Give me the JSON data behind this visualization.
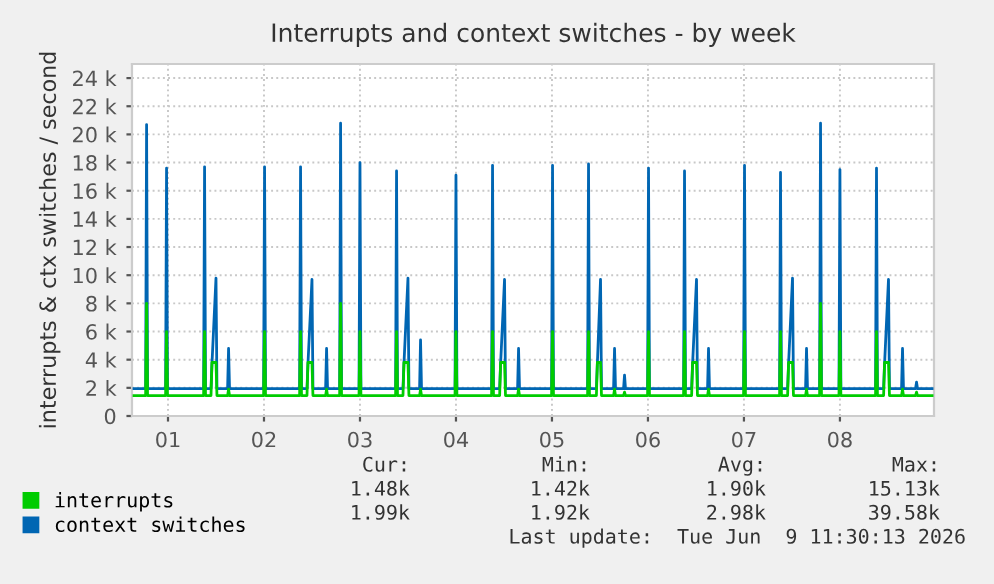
{
  "chart_data": {
    "type": "line",
    "title": "Interrupts and context switches - by week",
    "ylabel": "interrupts & ctx switches / second",
    "x": [
      0.646,
      0.767,
      0.777,
      0.787,
      0.975,
      0.985,
      0.995,
      1.371,
      1.381,
      1.391,
      1.448,
      1.458,
      1.5,
      1.51,
      1.621,
      1.631,
      1.641,
      1.996,
      2.006,
      2.016,
      2.371,
      2.381,
      2.391,
      2.448,
      2.458,
      2.5,
      2.51,
      2.642,
      2.652,
      2.662,
      2.788,
      2.798,
      2.808,
      2.99,
      3.0,
      3.01,
      3.371,
      3.381,
      3.391,
      3.448,
      3.458,
      3.5,
      3.51,
      3.621,
      3.631,
      3.641,
      3.99,
      4.0,
      4.01,
      4.371,
      4.381,
      4.391,
      4.455,
      4.465,
      4.506,
      4.516,
      4.642,
      4.652,
      4.662,
      4.996,
      5.006,
      5.016,
      5.371,
      5.381,
      5.391,
      5.463,
      5.473,
      5.506,
      5.516,
      5.642,
      5.652,
      5.662,
      5.746,
      5.756,
      5.766,
      5.996,
      6.006,
      6.016,
      6.371,
      6.381,
      6.391,
      6.455,
      6.465,
      6.506,
      6.516,
      6.621,
      6.631,
      6.641,
      6.996,
      7.006,
      7.016,
      7.371,
      7.381,
      7.391,
      7.455,
      7.465,
      7.506,
      7.516,
      7.642,
      7.652,
      7.662,
      7.788,
      7.798,
      7.808,
      7.99,
      8.0,
      8.01,
      8.371,
      8.381,
      8.391,
      8.455,
      8.465,
      8.506,
      8.516,
      8.642,
      8.652,
      8.662,
      8.788,
      8.798,
      8.808,
      8.96
    ],
    "series": [
      {
        "name": "interrupts",
        "color": "#00cc00",
        "values": [
          1450,
          1450,
          8000,
          1450,
          1450,
          6000,
          1450,
          1450,
          6000,
          1450,
          1450,
          3800,
          3800,
          1450,
          1450,
          1900,
          1450,
          1450,
          6000,
          1450,
          1450,
          6000,
          1450,
          1450,
          3800,
          3800,
          1450,
          1450,
          1900,
          1450,
          1450,
          8000,
          1450,
          1450,
          6000,
          1450,
          1450,
          6000,
          1450,
          1450,
          3800,
          3800,
          1450,
          1450,
          1900,
          1450,
          1450,
          6000,
          1450,
          1450,
          6000,
          1450,
          1450,
          3800,
          3800,
          1450,
          1450,
          1900,
          1450,
          1450,
          6000,
          1450,
          1450,
          6000,
          1450,
          1450,
          3800,
          3800,
          1450,
          1450,
          1900,
          1450,
          1450,
          1700,
          1450,
          1450,
          6000,
          1450,
          1450,
          6000,
          1450,
          1450,
          3800,
          3800,
          1450,
          1450,
          1900,
          1450,
          1450,
          6000,
          1450,
          1450,
          6000,
          1450,
          1450,
          3800,
          3800,
          1450,
          1450,
          1900,
          1450,
          1450,
          8000,
          1450,
          1450,
          6000,
          1450,
          1450,
          6000,
          1450,
          1450,
          3800,
          3800,
          1450,
          1450,
          1900,
          1450,
          1450,
          1700,
          1450,
          1450
        ]
      },
      {
        "name": "context switches",
        "color": "#0066b3",
        "values": [
          1950,
          1950,
          20700,
          1950,
          1950,
          17600,
          1950,
          1950,
          17700,
          1950,
          1950,
          3700,
          9800,
          1950,
          1950,
          4800,
          1950,
          1950,
          17700,
          1950,
          1950,
          17700,
          1950,
          1950,
          3700,
          9700,
          1950,
          1950,
          4800,
          1950,
          1950,
          20800,
          1950,
          1950,
          18000,
          1950,
          1950,
          17400,
          1950,
          1950,
          3700,
          9800,
          1950,
          1950,
          5400,
          1950,
          1950,
          17100,
          1950,
          1950,
          17800,
          1950,
          1950,
          3700,
          9700,
          1950,
          1950,
          4800,
          1950,
          1950,
          17800,
          1950,
          1950,
          17900,
          1950,
          1950,
          3700,
          9700,
          1950,
          1950,
          4800,
          1950,
          1950,
          2900,
          1950,
          1950,
          17600,
          1950,
          1950,
          17400,
          1950,
          1950,
          3700,
          9700,
          1950,
          1950,
          4800,
          1950,
          1950,
          17800,
          1950,
          1950,
          17300,
          1950,
          1950,
          3700,
          9800,
          1950,
          1950,
          4800,
          1950,
          1950,
          20800,
          1950,
          1950,
          17500,
          1950,
          1950,
          17600,
          1950,
          1950,
          3700,
          9700,
          1950,
          1950,
          4800,
          1950,
          1950,
          2400,
          1950,
          1950
        ]
      }
    ],
    "xlim": [
      0.625,
      8.98
    ],
    "xticks": [
      {
        "value": 1,
        "label": "01"
      },
      {
        "value": 2,
        "label": "02"
      },
      {
        "value": 3,
        "label": "03"
      },
      {
        "value": 4,
        "label": "04"
      },
      {
        "value": 5,
        "label": "05"
      },
      {
        "value": 6,
        "label": "06"
      },
      {
        "value": 7,
        "label": "07"
      },
      {
        "value": 8,
        "label": "08"
      }
    ],
    "ylim": [
      0,
      25000
    ],
    "yticks": [
      0,
      {
        "value": 2000,
        "label": "2 k"
      },
      {
        "value": 4000,
        "label": "4 k"
      },
      {
        "value": 6000,
        "label": "6 k"
      },
      {
        "value": 8000,
        "label": "8 k"
      },
      {
        "value": 10000,
        "label": "10 k"
      },
      {
        "value": 12000,
        "label": "12 k"
      },
      {
        "value": 14000,
        "label": "14 k"
      },
      {
        "value": 16000,
        "label": "16 k"
      },
      {
        "value": 18000,
        "label": "18 k"
      },
      {
        "value": 20000,
        "label": "20 k"
      },
      {
        "value": 22000,
        "label": "22 k"
      },
      {
        "value": 24000,
        "label": "24 k"
      }
    ],
    "grid": true,
    "legend": "bottom",
    "marker": "none",
    "line_style": "solid",
    "annotations": [
      "Cur:",
      "Min:",
      "Avg:",
      "Max:",
      "1.48k",
      "1.42k",
      "1.90k",
      "15.13k",
      "1.99k",
      "1.92k",
      "2.98k",
      "39.58k",
      "Last update:  Tue Jun  9 11:30:13 2026"
    ]
  }
}
